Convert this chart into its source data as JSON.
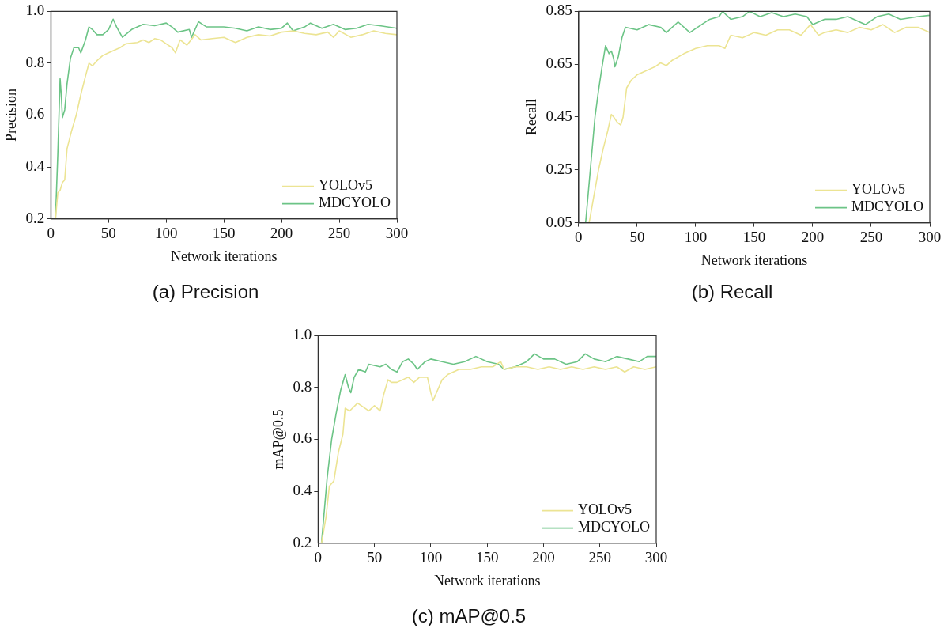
{
  "chart_data": [
    {
      "type": "line",
      "title": "(a) Precision",
      "xlabel": "Network iterations",
      "ylabel": "Precision",
      "xlim": [
        0,
        300
      ],
      "xticks": [
        0,
        50,
        100,
        150,
        200,
        250,
        300
      ],
      "ylim": [
        0.2,
        1
      ],
      "yticks": [
        0.2,
        0.4,
        0.6,
        0.8,
        {
          "value": 1,
          "label": "1.0"
        }
      ],
      "grid": false,
      "legend": "bottom right",
      "series": [
        {
          "name": "YOLOv5",
          "color": "#ece493",
          "x": [
            4,
            6,
            8,
            10,
            12,
            14,
            18,
            22,
            26,
            30,
            33,
            36,
            40,
            45,
            50,
            55,
            60,
            65,
            75,
            80,
            85,
            90,
            95,
            100,
            105,
            108,
            112,
            118,
            125,
            130,
            140,
            150,
            160,
            170,
            180,
            190,
            200,
            210,
            220,
            230,
            240,
            245,
            250,
            260,
            270,
            280,
            290,
            300
          ],
          "values": [
            0.2,
            0.3,
            0.31,
            0.34,
            0.35,
            0.47,
            0.54,
            0.6,
            0.68,
            0.75,
            0.8,
            0.79,
            0.81,
            0.83,
            0.84,
            0.85,
            0.86,
            0.875,
            0.88,
            0.89,
            0.88,
            0.895,
            0.89,
            0.875,
            0.86,
            0.84,
            0.89,
            0.87,
            0.91,
            0.89,
            0.895,
            0.9,
            0.88,
            0.9,
            0.91,
            0.905,
            0.92,
            0.925,
            0.915,
            0.91,
            0.92,
            0.9,
            0.925,
            0.9,
            0.91,
            0.925,
            0.915,
            0.91
          ]
        },
        {
          "name": "MDCYOLO",
          "color": "#6cc486",
          "x": [
            4,
            6,
            8,
            9,
            10,
            12,
            14,
            17,
            20,
            24,
            26,
            30,
            33,
            36,
            40,
            45,
            50,
            54,
            57,
            62,
            70,
            80,
            90,
            100,
            105,
            110,
            120,
            122,
            128,
            135,
            150,
            160,
            170,
            180,
            190,
            200,
            205,
            210,
            220,
            225,
            235,
            245,
            255,
            265,
            275,
            285,
            300
          ],
          "values": [
            0.2,
            0.45,
            0.74,
            0.68,
            0.59,
            0.62,
            0.72,
            0.82,
            0.86,
            0.86,
            0.84,
            0.89,
            0.94,
            0.93,
            0.91,
            0.91,
            0.93,
            0.97,
            0.94,
            0.9,
            0.93,
            0.95,
            0.945,
            0.955,
            0.94,
            0.92,
            0.93,
            0.9,
            0.96,
            0.94,
            0.94,
            0.935,
            0.925,
            0.94,
            0.93,
            0.935,
            0.955,
            0.925,
            0.94,
            0.955,
            0.935,
            0.95,
            0.93,
            0.935,
            0.95,
            0.945,
            0.935
          ]
        }
      ]
    },
    {
      "type": "line",
      "title": "(b) Recall",
      "xlabel": "Network iterations",
      "ylabel": "Recall",
      "xlim": [
        0,
        300
      ],
      "xticks": [
        0,
        50,
        100,
        150,
        200,
        250,
        300
      ],
      "ylim": [
        0.05,
        0.85
      ],
      "yticks": [
        0.05,
        0.25,
        0.45,
        0.65,
        0.85
      ],
      "grid": false,
      "legend": "bottom right",
      "series": [
        {
          "name": "YOLOv5",
          "color": "#ece493",
          "x": [
            9,
            13,
            17,
            21,
            25,
            28,
            30,
            33,
            36,
            38,
            41,
            45,
            50,
            55,
            60,
            65,
            70,
            75,
            80,
            90,
            100,
            110,
            120,
            125,
            130,
            140,
            150,
            160,
            170,
            180,
            190,
            198,
            205,
            210,
            220,
            230,
            240,
            250,
            260,
            270,
            280,
            290,
            300
          ],
          "values": [
            0.05,
            0.15,
            0.25,
            0.33,
            0.4,
            0.46,
            0.45,
            0.43,
            0.42,
            0.45,
            0.56,
            0.59,
            0.61,
            0.62,
            0.63,
            0.64,
            0.655,
            0.645,
            0.665,
            0.69,
            0.71,
            0.72,
            0.72,
            0.71,
            0.76,
            0.75,
            0.77,
            0.76,
            0.78,
            0.78,
            0.76,
            0.8,
            0.76,
            0.77,
            0.78,
            0.77,
            0.79,
            0.78,
            0.8,
            0.77,
            0.79,
            0.79,
            0.77
          ]
        },
        {
          "name": "MDCYOLO",
          "color": "#6cc486",
          "x": [
            6,
            10,
            14,
            17,
            20,
            23,
            26,
            28,
            30,
            31,
            34,
            37,
            40,
            50,
            60,
            70,
            75,
            85,
            95,
            105,
            112,
            120,
            123,
            130,
            140,
            146,
            155,
            165,
            175,
            185,
            195,
            200,
            210,
            220,
            230,
            240,
            245,
            255,
            265,
            275,
            290,
            300
          ],
          "values": [
            0.05,
            0.25,
            0.45,
            0.55,
            0.64,
            0.72,
            0.69,
            0.7,
            0.67,
            0.64,
            0.68,
            0.75,
            0.79,
            0.78,
            0.8,
            0.79,
            0.77,
            0.81,
            0.77,
            0.8,
            0.82,
            0.83,
            0.85,
            0.82,
            0.83,
            0.85,
            0.83,
            0.845,
            0.83,
            0.84,
            0.83,
            0.8,
            0.82,
            0.82,
            0.83,
            0.81,
            0.8,
            0.83,
            0.84,
            0.82,
            0.83,
            0.835
          ]
        }
      ]
    },
    {
      "type": "line",
      "title": "(c) mAP@0.5",
      "xlabel": "Network iterations",
      "ylabel": "mAP@0.5",
      "xlim": [
        0,
        300
      ],
      "xticks": [
        0,
        50,
        100,
        150,
        200,
        250,
        300
      ],
      "ylim": [
        0.2,
        1
      ],
      "yticks": [
        0.2,
        0.4,
        0.6,
        0.8,
        {
          "value": 1,
          "label": "1.0"
        }
      ],
      "grid": false,
      "legend": "bottom right",
      "series": [
        {
          "name": "YOLOv5",
          "color": "#ece493",
          "x": [
            3,
            7,
            10,
            14,
            18,
            22,
            24,
            28,
            35,
            45,
            50,
            55,
            58,
            62,
            65,
            70,
            75,
            80,
            85,
            90,
            97,
            100,
            102,
            105,
            110,
            115,
            125,
            135,
            145,
            155,
            162,
            165,
            175,
            185,
            195,
            205,
            215,
            225,
            235,
            245,
            255,
            265,
            272,
            280,
            290,
            300
          ],
          "values": [
            0.2,
            0.3,
            0.42,
            0.44,
            0.55,
            0.62,
            0.72,
            0.71,
            0.74,
            0.71,
            0.73,
            0.71,
            0.77,
            0.83,
            0.82,
            0.82,
            0.83,
            0.84,
            0.82,
            0.84,
            0.84,
            0.78,
            0.75,
            0.78,
            0.83,
            0.85,
            0.87,
            0.87,
            0.88,
            0.88,
            0.9,
            0.87,
            0.88,
            0.88,
            0.87,
            0.88,
            0.87,
            0.88,
            0.87,
            0.88,
            0.87,
            0.88,
            0.86,
            0.88,
            0.87,
            0.88
          ]
        },
        {
          "name": "MDCYOLO",
          "color": "#6cc486",
          "x": [
            3,
            8,
            12,
            16,
            20,
            24,
            27,
            29,
            32,
            36,
            42,
            45,
            55,
            60,
            65,
            70,
            75,
            80,
            85,
            88,
            95,
            100,
            110,
            120,
            130,
            140,
            150,
            160,
            165,
            175,
            185,
            192,
            200,
            210,
            220,
            230,
            237,
            245,
            255,
            265,
            275,
            285,
            292,
            300
          ],
          "values": [
            0.2,
            0.45,
            0.6,
            0.7,
            0.79,
            0.85,
            0.8,
            0.78,
            0.84,
            0.87,
            0.86,
            0.89,
            0.88,
            0.89,
            0.87,
            0.86,
            0.9,
            0.91,
            0.89,
            0.87,
            0.9,
            0.91,
            0.9,
            0.89,
            0.9,
            0.92,
            0.9,
            0.89,
            0.87,
            0.88,
            0.9,
            0.93,
            0.91,
            0.91,
            0.89,
            0.9,
            0.93,
            0.91,
            0.9,
            0.92,
            0.91,
            0.9,
            0.92,
            0.92
          ]
        }
      ]
    }
  ]
}
